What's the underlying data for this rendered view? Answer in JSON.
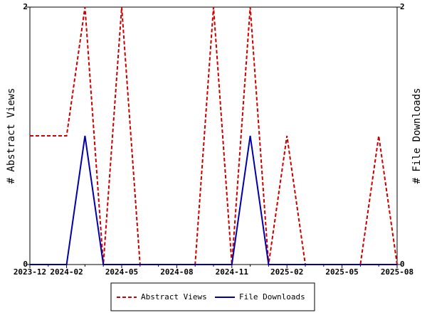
{
  "chart_data": {
    "type": "line",
    "categories": [
      "2023-12",
      null,
      "2024-02",
      null,
      null,
      "2024-05",
      null,
      null,
      "2024-08",
      null,
      null,
      "2024-11",
      null,
      null,
      "2025-02",
      null,
      null,
      "2025-05",
      null,
      null,
      "2025-08"
    ],
    "series": [
      {
        "name": "Abstract Views",
        "color": "#cc0000",
        "dashed": true,
        "values": [
          1,
          1,
          1,
          2,
          0,
          2,
          0,
          0,
          0,
          0,
          2,
          0,
          2,
          0,
          1,
          0,
          0,
          0,
          0,
          1,
          0
        ]
      },
      {
        "name": "File Downloads",
        "color": "#0000aa",
        "dashed": false,
        "axis": "y2",
        "values": [
          0,
          0,
          0,
          1,
          0,
          0,
          0,
          0,
          0,
          0,
          0,
          0,
          1,
          0,
          0,
          0,
          0,
          0,
          0,
          0,
          0
        ]
      }
    ],
    "ylabel": "# Abstract Views",
    "y2label": "# File Downloads",
    "ylim": [
      0,
      2
    ],
    "yticks": [
      0,
      2
    ],
    "y2lim": [
      0,
      2
    ],
    "y2ticks": [
      0,
      2
    ],
    "legend": "bottom"
  }
}
